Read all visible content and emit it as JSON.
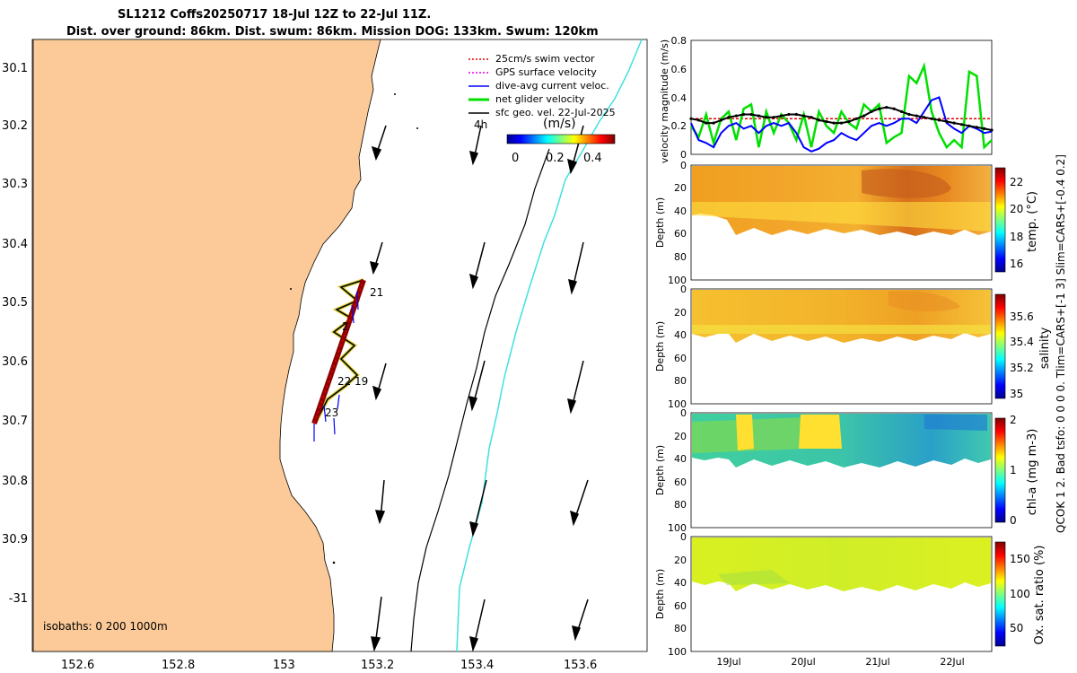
{
  "title": {
    "line1": "SL1212 Coffs20250717 18-Jul 12Z to 22-Jul 11Z.",
    "line2": "Dist. over ground: 86km. Dist. swum: 86km. Mission DOG: 133km. Swum: 120km"
  },
  "map": {
    "x_ticks": [
      "152.6",
      "152.8",
      "153",
      "153.2",
      "153.4",
      "153.6"
    ],
    "y_ticks": [
      "30.1",
      "30.2",
      "30.3",
      "30.4",
      "30.5",
      "30.6",
      "30.7",
      "30.8",
      "30.9",
      "-31"
    ],
    "isobaths_label": "isobaths: 0   200  1000m",
    "legend": [
      {
        "label": "25cm/s swim vector",
        "color": "#e00000"
      },
      {
        "label": "GPS surface velocity",
        "color": "#e000e0"
      },
      {
        "label": "dive-avg current veloc.",
        "color": "#0000ff"
      },
      {
        "label": "net glider velocity",
        "color": "#00e000"
      },
      {
        "label": "sfc geo. vel. 22-Jul-2025",
        "color": "#000000"
      }
    ],
    "legend_4h": "4h",
    "colorbar_unit": "(m/s)",
    "colorbar_ticks": [
      "0",
      "0.2",
      "0.4"
    ],
    "day_labels": [
      "21",
      "2",
      "22",
      "19",
      "23"
    ],
    "land_color": "#fbca98"
  },
  "chart_data": [
    {
      "type": "line",
      "title": "",
      "ylabel": "velocity magnitude (m/s)",
      "ylim": [
        0,
        0.8
      ],
      "yticks": [
        "0",
        "0.2",
        "0.4",
        "0.6",
        "0.8"
      ],
      "x": [
        0,
        0.1,
        0.2,
        0.3,
        0.4,
        0.5,
        0.6,
        0.7,
        0.8,
        0.9,
        1.0,
        1.1,
        1.2,
        1.3,
        1.4,
        1.5,
        1.6,
        1.7,
        1.8,
        1.9,
        2.0,
        2.1,
        2.2,
        2.3,
        2.4,
        2.5,
        2.6,
        2.7,
        2.8,
        2.9,
        3.0,
        3.1,
        3.2,
        3.3,
        3.4,
        3.5,
        3.6,
        3.7,
        3.8,
        3.9,
        4.0
      ],
      "series": [
        {
          "name": "swim",
          "color": "#e00000",
          "values": [
            0.25,
            0.25,
            0.25,
            0.25,
            0.25,
            0.25,
            0.25,
            0.25,
            0.25,
            0.25,
            0.25,
            0.25,
            0.25,
            0.25,
            0.25,
            0.25,
            0.25,
            0.25,
            0.25,
            0.25,
            0.25,
            0.25,
            0.25,
            0.25,
            0.25,
            0.25,
            0.25,
            0.25,
            0.25,
            0.25,
            0.25,
            0.25,
            0.25,
            0.25,
            0.25,
            0.25,
            0.25,
            0.25,
            0.25,
            0.25,
            0.25
          ]
        },
        {
          "name": "net",
          "color": "#00e000",
          "values": [
            0.2,
            0.12,
            0.28,
            0.08,
            0.25,
            0.3,
            0.1,
            0.32,
            0.35,
            0.05,
            0.3,
            0.15,
            0.28,
            0.22,
            0.1,
            0.28,
            0.05,
            0.3,
            0.2,
            0.15,
            0.3,
            0.22,
            0.18,
            0.35,
            0.3,
            0.35,
            0.08,
            0.12,
            0.15,
            0.55,
            0.5,
            0.62,
            0.3,
            0.15,
            0.05,
            0.1,
            0.05,
            0.58,
            0.55,
            0.05,
            0.1
          ]
        },
        {
          "name": "dive-avg",
          "color": "#0000ff",
          "values": [
            0.22,
            0.1,
            0.08,
            0.05,
            0.15,
            0.2,
            0.22,
            0.18,
            0.2,
            0.15,
            0.2,
            0.22,
            0.2,
            0.22,
            0.15,
            0.05,
            0.02,
            0.04,
            0.08,
            0.1,
            0.15,
            0.12,
            0.1,
            0.15,
            0.2,
            0.22,
            0.2,
            0.22,
            0.25,
            0.25,
            0.22,
            0.3,
            0.38,
            0.4,
            0.22,
            0.18,
            0.15,
            0.2,
            0.18,
            0.15,
            0.16
          ]
        },
        {
          "name": "sfc",
          "color": "#000000",
          "values": [
            0.25,
            0.24,
            0.22,
            0.22,
            0.24,
            0.26,
            0.27,
            0.28,
            0.28,
            0.27,
            0.26,
            0.26,
            0.27,
            0.28,
            0.28,
            0.27,
            0.26,
            0.24,
            0.23,
            0.22,
            0.22,
            0.23,
            0.25,
            0.27,
            0.3,
            0.32,
            0.33,
            0.32,
            0.3,
            0.28,
            0.27,
            0.26,
            0.25,
            0.24,
            0.23,
            0.22,
            0.21,
            0.2,
            0.19,
            0.18,
            0.17
          ]
        }
      ]
    },
    {
      "type": "heatmap",
      "variable": "temperature",
      "clabel": "temp. (°C)",
      "clim": [
        15.3,
        23
      ],
      "cticks": [
        "16",
        "18",
        "20",
        "22"
      ],
      "ylabel": "Depth (m)",
      "ylim": [
        0,
        100
      ],
      "yticks": [
        "0",
        "20",
        "40",
        "60",
        "80",
        "100"
      ]
    },
    {
      "type": "heatmap",
      "variable": "salinity",
      "clabel": "salinity",
      "clim": [
        34.9,
        35.8
      ],
      "cticks": [
        "35",
        "35.2",
        "35.4",
        "35.6"
      ],
      "ylabel": "Depth (m)",
      "ylim": [
        0,
        100
      ],
      "yticks": [
        "0",
        "20",
        "40",
        "60",
        "80",
        "100"
      ]
    },
    {
      "type": "heatmap",
      "variable": "chlorophyll",
      "clabel": "chl-a  (mg m-3)",
      "clim": [
        0,
        2
      ],
      "cticks": [
        "0",
        "1",
        "2"
      ],
      "ylabel": "Depth (m)",
      "ylim": [
        0,
        100
      ],
      "yticks": [
        "0",
        "20",
        "40",
        "60",
        "80",
        "100"
      ]
    },
    {
      "type": "heatmap",
      "variable": "oxygen",
      "clabel": "Ox. sat. ratio (%)",
      "clim": [
        25,
        175
      ],
      "cticks": [
        "50",
        "100",
        "150"
      ],
      "ylabel": "Depth (m)",
      "ylim": [
        0,
        100
      ],
      "yticks": [
        "0",
        "20",
        "40",
        "60",
        "80",
        "100"
      ],
      "xticks": [
        "19Jul",
        "20Jul",
        "21Jul",
        "22Jul"
      ]
    }
  ],
  "side_note": "QCOK 1  2. Bad tsfo: 0  0  0  0. Tlim=CARS+[-1 3] Slim=CARS+[-0.4 0.2]"
}
